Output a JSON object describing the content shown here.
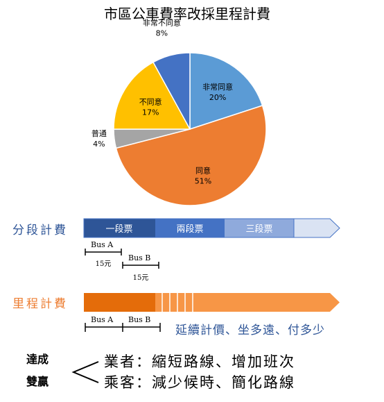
{
  "chart_data": {
    "type": "pie",
    "title": "市區公車費率改採里程計費",
    "categories": [
      "非常同意",
      "同意",
      "普通",
      "不同意",
      "非常不同意"
    ],
    "values": [
      20,
      51,
      4,
      17,
      8
    ],
    "value_labels": [
      "20%",
      "51%",
      "4%",
      "17%",
      "8%"
    ],
    "colors": [
      "#5b9bd5",
      "#ed7d31",
      "#a5a5a5",
      "#ffc000",
      "#4472c4"
    ]
  },
  "segment_fare": {
    "label": "分段計費",
    "segments": [
      "一段票",
      "兩段票",
      "三段票"
    ],
    "bus_a": "Bus A",
    "bus_b": "Bus B",
    "fare_a": "15元",
    "fare_b": "15元",
    "colors": {
      "label": "#2e5597",
      "seg1": "#2e5597",
      "seg2": "#4472c4",
      "seg3": "#8faadc",
      "tail": "#dae3f3"
    }
  },
  "distance_fare": {
    "label": "里程計費",
    "bus_a": "Bus A",
    "bus_b": "Bus B",
    "note": "延續計價、坐多遠、付多少",
    "colors": {
      "label": "#ed7d31",
      "main": "#e46c0a",
      "tail": "#f79646"
    }
  },
  "win_win": {
    "title_line1": "達成",
    "title_line2": "雙贏",
    "operator": "業者：縮短路線、增加班次",
    "passenger": "乘客：減少候時、簡化路線"
  }
}
